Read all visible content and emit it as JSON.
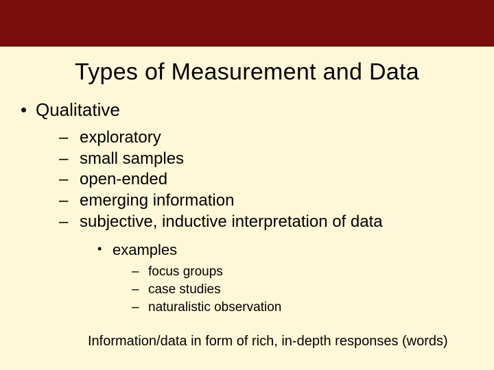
{
  "colors": {
    "header_bar": "#7a0c0c",
    "background": "#fdf8d8",
    "text": "#000000"
  },
  "typography": {
    "font_family": "Arial",
    "title_fontsize_pt": 34,
    "l1_fontsize_pt": 26,
    "l2_fontsize_pt": 24,
    "l3_fontsize_pt": 22,
    "l4_fontsize_pt": 19,
    "footer_fontsize_pt": 20
  },
  "slide": {
    "title": "Types of Measurement and Data",
    "l1": "Qualitative",
    "l2_items": {
      "0": "exploratory",
      "1": "small samples",
      "2": "open-ended",
      "3": "emerging information",
      "4": "subjective, inductive interpretation of data"
    },
    "l3": "examples",
    "l4_items": {
      "0": "focus groups",
      "1": "case studies",
      "2": "naturalistic observation"
    },
    "footer": "Information/data in form of rich, in-depth responses (words)"
  }
}
